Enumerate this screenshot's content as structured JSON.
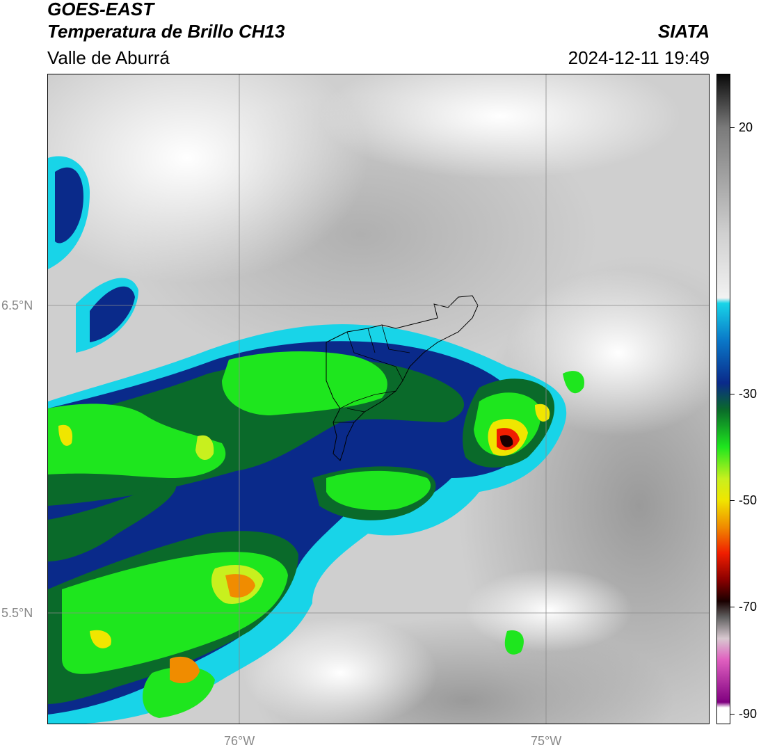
{
  "header": {
    "satellite": "GOES-EAST",
    "product": "Temperatura de Brillo CH13",
    "region": "Valle de Aburrá",
    "organization": "SIATA",
    "datetime": "2024-12-11 19:49"
  },
  "map": {
    "lat_labels": [
      "6.5°N",
      "5.5°N"
    ],
    "lon_labels": [
      "76°W",
      "75°W"
    ],
    "gridlines": true
  },
  "colorbar": {
    "tick_labels": [
      "20",
      "-30",
      "-50",
      "-70",
      "-90"
    ],
    "tick_values": [
      20,
      -30,
      -50,
      -70,
      -90
    ],
    "range": [
      -92,
      30
    ],
    "stops": [
      {
        "v": 30,
        "c": "#0a0a0a"
      },
      {
        "v": 20,
        "c": "#7a7a7a"
      },
      {
        "v": 0,
        "c": "#d0d0d0"
      },
      {
        "v": -12,
        "c": "#f2f2f2"
      },
      {
        "v": -13,
        "c": "#18d4e8"
      },
      {
        "v": -20,
        "c": "#0a78c8"
      },
      {
        "v": -28,
        "c": "#0a2a8a"
      },
      {
        "v": -33,
        "c": "#0a6a2a"
      },
      {
        "v": -40,
        "c": "#1ee61e"
      },
      {
        "v": -46,
        "c": "#c8f01e"
      },
      {
        "v": -50,
        "c": "#f0e600"
      },
      {
        "v": -55,
        "c": "#f08c00"
      },
      {
        "v": -60,
        "c": "#f01e00"
      },
      {
        "v": -65,
        "c": "#8a0000"
      },
      {
        "v": -69,
        "c": "#1a0000"
      },
      {
        "v": -72,
        "c": "#606060"
      },
      {
        "v": -76,
        "c": "#d8c8d0"
      },
      {
        "v": -80,
        "c": "#e060c0"
      },
      {
        "v": -88,
        "c": "#800080"
      },
      {
        "v": -89,
        "c": "#ffffff"
      },
      {
        "v": -92,
        "c": "#ffffff"
      }
    ]
  }
}
